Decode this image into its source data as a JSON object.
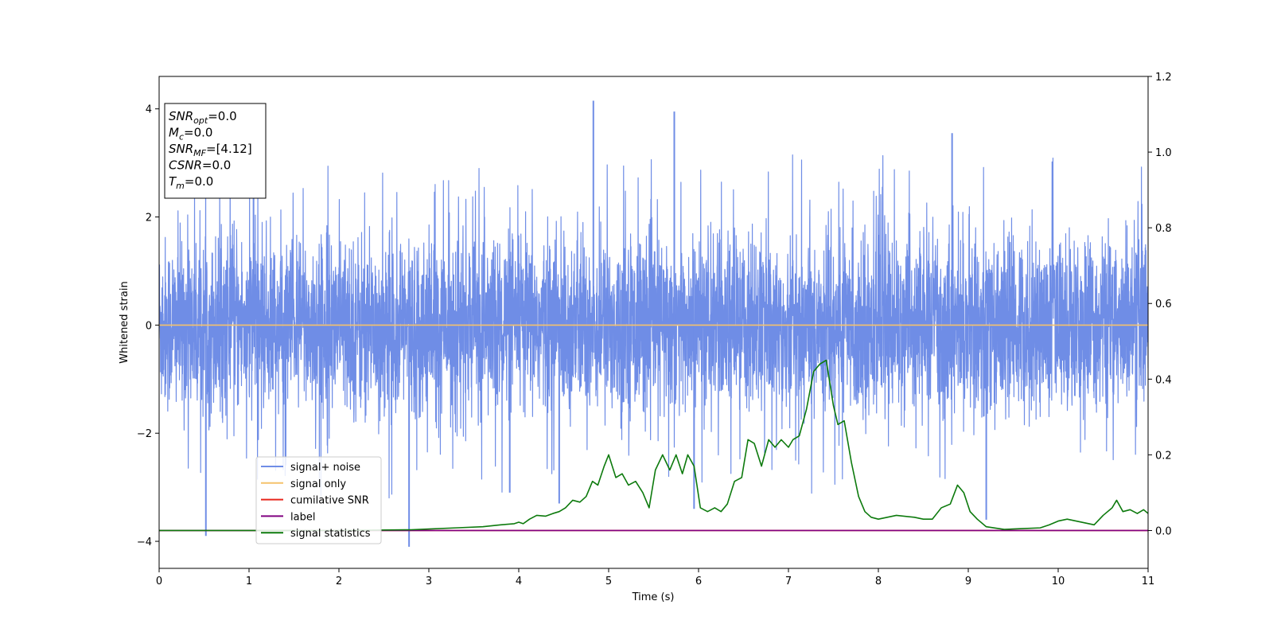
{
  "chart_data": {
    "type": "line",
    "xlabel": "Time (s)",
    "ylabel": "Whitened strain",
    "xlim": [
      0,
      11
    ],
    "ylim": [
      -4.5,
      4.6
    ],
    "y2lim": [
      -0.1,
      1.2
    ],
    "xticks": [
      "0",
      "1",
      "2",
      "3",
      "4",
      "5",
      "6",
      "7",
      "8",
      "9",
      "10",
      "11"
    ],
    "yticks": [
      "−4",
      "−2",
      "0",
      "2",
      "4"
    ],
    "y2ticks": [
      "0.0",
      "0.2",
      "0.4",
      "0.6",
      "0.8",
      "1.0",
      "1.2"
    ],
    "grid": false,
    "legend_position": "lower-left",
    "info_box": {
      "lines": [
        {
          "sym": "SNR",
          "sub": "opt",
          "value": "=0.0"
        },
        {
          "sym": "M",
          "sub": "c",
          "value": "=0.0"
        },
        {
          "sym": "SNR",
          "sub": "MF",
          "value": "=[4.12]"
        },
        {
          "sym": "CSNR",
          "sub": "",
          "value": "=0.0"
        },
        {
          "sym": "T",
          "sub": "m",
          "value": "=0.0"
        }
      ]
    },
    "series": [
      {
        "name": "signal+ noise",
        "color": "#6f8de6",
        "axis": "left",
        "description_values": {
          "typical_range": [
            -2.0,
            2.0
          ],
          "approx_std": 0.8
        },
        "spikes": [
          [
            0.52,
            -3.9
          ],
          [
            2.78,
            -4.1
          ],
          [
            4.83,
            4.15
          ],
          [
            5.73,
            3.95
          ],
          [
            8.82,
            3.55
          ],
          [
            3.9,
            -3.1
          ],
          [
            9.2,
            -3.6
          ],
          [
            4.45,
            -3.3
          ],
          [
            5.95,
            -3.4
          ],
          [
            1.05,
            3.3
          ]
        ]
      },
      {
        "name": "signal only",
        "color": "#f5c26b",
        "axis": "left",
        "x": [
          0,
          11
        ],
        "y": [
          0,
          0
        ]
      },
      {
        "name": "cumilative SNR",
        "color": "#e8261b",
        "axis": "right",
        "x": [
          0,
          11
        ],
        "y": [
          0,
          0
        ]
      },
      {
        "name": "label",
        "color": "#800080",
        "axis": "right",
        "x": [
          0,
          11
        ],
        "y": [
          0,
          0
        ]
      },
      {
        "name": "signal statistics",
        "color": "#0d7a0d",
        "axis": "right",
        "x": [
          0,
          1,
          2,
          2.8,
          3.0,
          3.3,
          3.6,
          3.8,
          3.95,
          4.0,
          4.05,
          4.12,
          4.2,
          4.3,
          4.38,
          4.45,
          4.52,
          4.6,
          4.68,
          4.75,
          4.82,
          4.88,
          4.95,
          5.0,
          5.08,
          5.15,
          5.22,
          5.3,
          5.38,
          5.45,
          5.52,
          5.6,
          5.68,
          5.75,
          5.82,
          5.88,
          5.95,
          6.02,
          6.1,
          6.18,
          6.25,
          6.32,
          6.4,
          6.48,
          6.55,
          6.62,
          6.7,
          6.78,
          6.85,
          6.92,
          7.0,
          7.05,
          7.12,
          7.2,
          7.28,
          7.35,
          7.42,
          7.5,
          7.55,
          7.62,
          7.7,
          7.78,
          7.85,
          7.92,
          8.0,
          8.1,
          8.2,
          8.4,
          8.5,
          8.6,
          8.7,
          8.8,
          8.88,
          8.95,
          9.02,
          9.1,
          9.2,
          9.4,
          9.6,
          9.8,
          9.9,
          10.0,
          10.1,
          10.2,
          10.3,
          10.4,
          10.5,
          10.6,
          10.65,
          10.72,
          10.8,
          10.88,
          10.95,
          11.0
        ],
        "y": [
          0.0,
          0.0,
          0.0,
          0.002,
          0.004,
          0.007,
          0.01,
          0.015,
          0.018,
          0.022,
          0.018,
          0.03,
          0.04,
          0.038,
          0.045,
          0.05,
          0.06,
          0.08,
          0.075,
          0.09,
          0.13,
          0.12,
          0.17,
          0.2,
          0.14,
          0.15,
          0.12,
          0.13,
          0.1,
          0.06,
          0.16,
          0.2,
          0.16,
          0.2,
          0.15,
          0.2,
          0.17,
          0.06,
          0.05,
          0.06,
          0.05,
          0.07,
          0.13,
          0.14,
          0.24,
          0.23,
          0.17,
          0.24,
          0.22,
          0.24,
          0.22,
          0.24,
          0.25,
          0.32,
          0.42,
          0.44,
          0.45,
          0.33,
          0.28,
          0.29,
          0.18,
          0.09,
          0.05,
          0.035,
          0.03,
          0.035,
          0.04,
          0.035,
          0.03,
          0.03,
          0.06,
          0.07,
          0.12,
          0.1,
          0.05,
          0.03,
          0.01,
          0.003,
          0.005,
          0.007,
          0.015,
          0.025,
          0.03,
          0.025,
          0.02,
          0.015,
          0.04,
          0.06,
          0.08,
          0.05,
          0.055,
          0.045,
          0.055,
          0.045
        ]
      }
    ]
  }
}
